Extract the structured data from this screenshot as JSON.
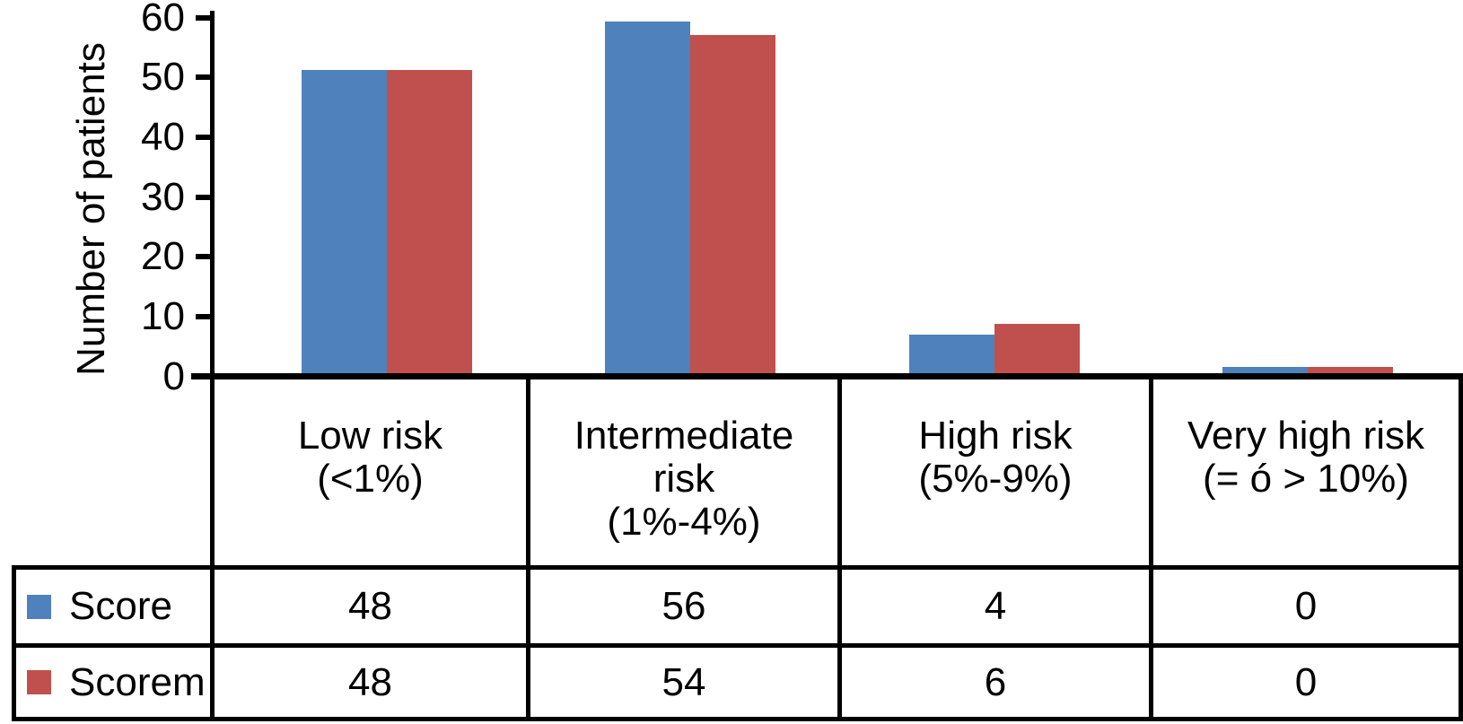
{
  "chart_data": {
    "type": "bar",
    "title": "",
    "xlabel": "",
    "ylabel": "Number of patients",
    "ylim": [
      0,
      60
    ],
    "yticks": [
      0,
      10,
      20,
      30,
      40,
      50,
      60
    ],
    "grid": false,
    "legend_position": "left column of data table",
    "categories": [
      "Low risk (<1%)",
      "Intermediate risk (1%-4%)",
      "High risk (5%-9%)",
      "Very high risk (= ó > 10%)"
    ],
    "category_label_lines": [
      [
        "Low risk",
        "(<1%)"
      ],
      [
        "Intermediate",
        "risk",
        "(1%-4%)"
      ],
      [
        "High risk",
        "(5%-9%)"
      ],
      [
        "Very high risk",
        "(= ó > 10%)"
      ]
    ],
    "series": [
      {
        "name": "Score",
        "color": "#4F81BD",
        "values": [
          48,
          56,
          4,
          0
        ],
        "drawn_bar_heights_axis_units": [
          51.3,
          59.3,
          7.0,
          1.6
        ]
      },
      {
        "name": "Scorem",
        "color": "#C0504D",
        "values": [
          48,
          54,
          6,
          0
        ],
        "drawn_bar_heights_axis_units": [
          51.3,
          57.1,
          8.8,
          1.6
        ]
      }
    ]
  },
  "data_table": {
    "rows": [
      {
        "label": "Score",
        "swatch_color": "#4F81BD",
        "values": [
          "48",
          "56",
          "4",
          "0"
        ]
      },
      {
        "label": "Scorem",
        "swatch_color": "#C0504D",
        "values": [
          "48",
          "54",
          "6",
          "0"
        ]
      }
    ]
  },
  "colors": {
    "bar_blue": "#4F81BD",
    "bar_red": "#C0504D",
    "border": "#000000",
    "background": "#FFFFFF",
    "text": "#000000"
  }
}
